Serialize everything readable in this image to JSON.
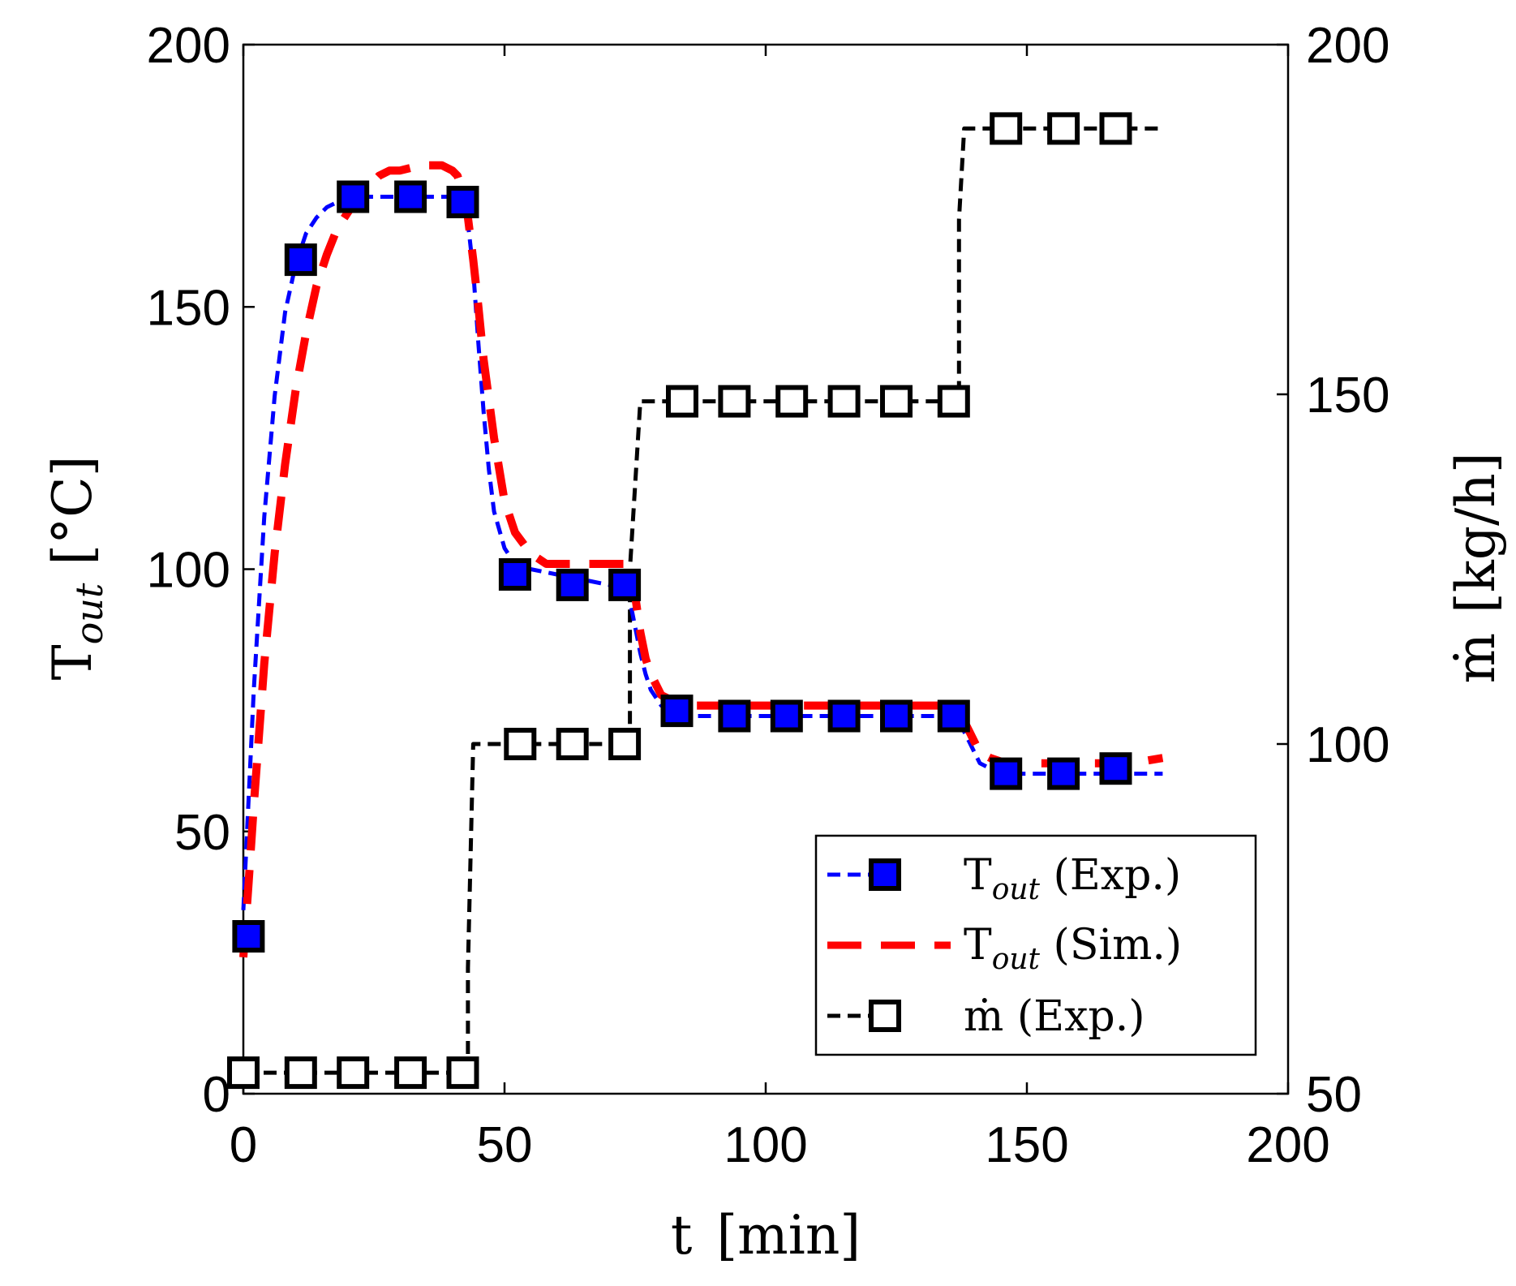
{
  "chart_data": {
    "type": "line",
    "x_axis": {
      "label_main": "t",
      "label_unit": "[min]",
      "ticks": [
        "0",
        "50",
        "100",
        "150",
        "200"
      ],
      "range": [
        0,
        200
      ]
    },
    "y_axis_left": {
      "label_main": "T",
      "label_sub": "out",
      "label_unit": "[°C]",
      "ticks": [
        "0",
        "50",
        "100",
        "150",
        "200"
      ],
      "range": [
        0,
        200
      ]
    },
    "y_axis_right": {
      "label_main": "ṁ",
      "label_unit": "[kg/h]",
      "ticks": [
        "50",
        "100",
        "150",
        "200"
      ],
      "range": [
        50,
        200
      ]
    },
    "legend": {
      "position": "bottom-right",
      "entries": [
        {
          "main": "T",
          "sub": "out",
          "suffix": " (Exp.)"
        },
        {
          "main": "T",
          "sub": "out",
          "suffix": " (Sim.)"
        },
        {
          "main": "ṁ",
          "sub": "",
          "suffix": " (Exp.)"
        }
      ]
    },
    "series": [
      {
        "name": "T_out (Exp.)",
        "axis": "left",
        "color": "#0000ff",
        "marker_fill": "#0000ff",
        "markers": {
          "x": [
            1,
            11,
            21,
            32,
            42,
            52,
            63,
            73,
            83,
            94,
            104,
            115,
            125,
            136,
            146,
            157,
            167
          ],
          "y": [
            30,
            159,
            171,
            171,
            170,
            99,
            97,
            97,
            73,
            72,
            72,
            72,
            72,
            72,
            61,
            61,
            62
          ]
        },
        "line": {
          "x": [
            0,
            2,
            4,
            6,
            8,
            10,
            12,
            14,
            16,
            18,
            20,
            22,
            25,
            30,
            35,
            40,
            42,
            43,
            44,
            45,
            46,
            47,
            48,
            50,
            52,
            55,
            60,
            65,
            70,
            73,
            74,
            75,
            76,
            77,
            78,
            80,
            82,
            85,
            90,
            100,
            110,
            120,
            130,
            136,
            137,
            138,
            139,
            140,
            141,
            143,
            146,
            150,
            160,
            170,
            176
          ],
          "y": [
            35,
            77,
            110,
            133,
            149,
            158,
            164,
            167,
            169,
            170,
            171,
            171,
            171,
            171,
            171,
            171,
            170,
            166,
            157,
            143,
            130,
            119,
            111,
            104,
            101,
            100,
            99,
            98,
            97,
            97,
            94,
            89,
            84,
            80,
            77,
            74,
            73,
            72,
            72,
            72,
            72,
            72,
            72,
            72,
            71,
            69,
            67,
            65,
            63,
            62,
            61,
            61,
            61,
            61,
            61
          ]
        }
      },
      {
        "name": "T_out (Sim.)",
        "axis": "left",
        "color": "#ff0000",
        "line": {
          "x": [
            0,
            1,
            2,
            4,
            6,
            8,
            10,
            12,
            14,
            16,
            18,
            20,
            22,
            24,
            26,
            28,
            30,
            34,
            38,
            40,
            41,
            42,
            43,
            44,
            45,
            46,
            48,
            50,
            52,
            55,
            58,
            62,
            66,
            70,
            74,
            75,
            76,
            77,
            78,
            80,
            82,
            85,
            90,
            100,
            110,
            120,
            130,
            136,
            137,
            138,
            139,
            140,
            141,
            143,
            146,
            150,
            160,
            170,
            176
          ],
          "y": [
            26,
            40,
            55,
            82,
            103,
            120,
            134,
            145,
            154,
            160,
            165,
            168,
            171,
            173,
            175,
            176,
            176,
            177,
            177,
            176,
            175,
            172,
            167,
            159,
            150,
            140,
            125,
            113,
            107,
            103,
            101,
            101,
            101,
            101,
            101,
            95,
            88,
            83,
            80,
            76,
            75,
            74,
            74,
            74,
            74,
            74,
            74,
            74,
            73,
            71,
            69,
            67,
            65,
            64,
            63,
            63,
            63,
            63,
            64
          ]
        }
      },
      {
        "name": "ṁ (Exp.)",
        "axis": "right",
        "color": "#000000",
        "marker_fill": "#ffffff",
        "markers": {
          "x": [
            0,
            11,
            21,
            32,
            42,
            53,
            63,
            73,
            84,
            94,
            105,
            115,
            125,
            136,
            146,
            157,
            167
          ],
          "y": [
            53,
            53,
            53,
            53,
            53,
            100,
            100,
            100,
            149,
            149,
            149,
            149,
            149,
            149,
            188,
            188,
            188
          ]
        },
        "line": {
          "x": [
            0,
            43,
            43,
            44,
            74,
            74,
            76,
            137,
            137,
            138,
            176
          ],
          "y": [
            53,
            53,
            68,
            100,
            100,
            125,
            149,
            149,
            175,
            188,
            188
          ]
        }
      }
    ]
  }
}
